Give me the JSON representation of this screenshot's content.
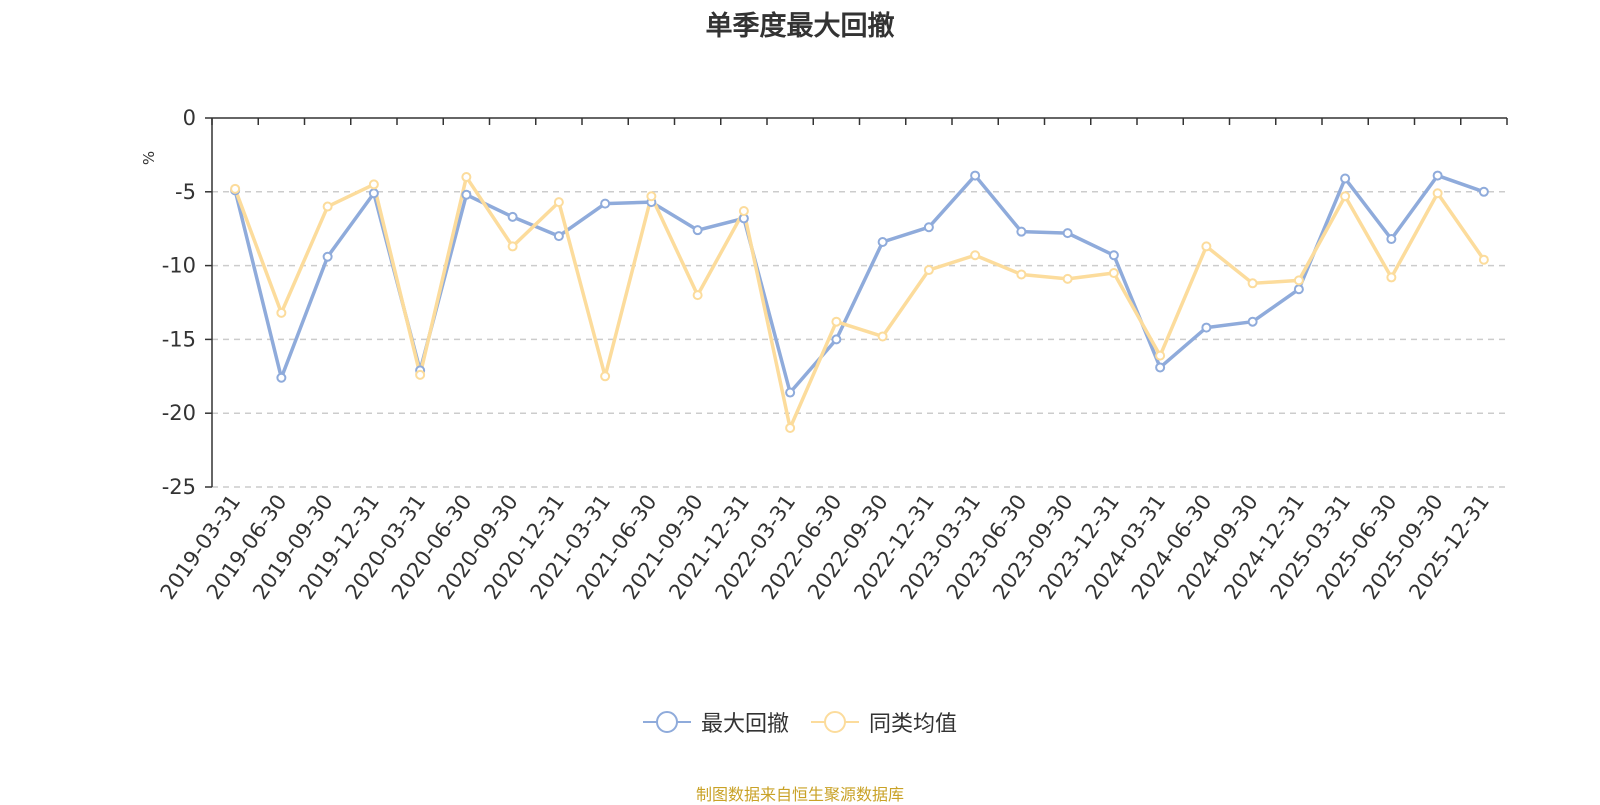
{
  "title": "单季度最大回撤",
  "source_note": "制图数据来自恒生聚源数据库",
  "colors": {
    "series1": "#8fabdb",
    "series2": "#fcdc9c",
    "grid": "#cccccc",
    "axis": "#333333",
    "unit": "#e02020"
  },
  "chart_data": {
    "type": "line",
    "title": "单季度最大回撤",
    "ylabel": "%",
    "ylim": [
      -25,
      0
    ],
    "yticks": [
      "0",
      "-5",
      "-10",
      "-15",
      "-20",
      "-25"
    ],
    "grid": true,
    "legend_position": "bottom-center",
    "categories": [
      "2019-03-31",
      "2019-06-30",
      "2019-09-30",
      "2019-12-31",
      "2020-03-31",
      "2020-06-30",
      "2020-09-30",
      "2020-12-31",
      "2021-03-31",
      "2021-06-30",
      "2021-09-30",
      "2021-12-31",
      "2022-03-31",
      "2022-06-30",
      "2022-09-30",
      "2022-12-31",
      "2023-03-31",
      "2023-06-30",
      "2023-09-30",
      "2023-12-31",
      "2024-03-31",
      "2024-06-30",
      "2024-09-30",
      "2024-12-31",
      "2025-03-31",
      "2025-06-30",
      "2025-09-30",
      "2025-12-31"
    ],
    "series": [
      {
        "name": "最大回撤",
        "color": "#8fabdb",
        "values": [
          -4.9,
          -17.6,
          -9.4,
          -5.1,
          -17.1,
          -5.2,
          -6.7,
          -8.0,
          -5.8,
          -5.7,
          -7.6,
          -6.8,
          -18.6,
          -15.0,
          -8.4,
          -7.4,
          -3.9,
          -7.7,
          -7.8,
          -9.3,
          -16.9,
          -14.2,
          -13.8,
          -11.6,
          -4.1,
          -8.2,
          -3.9,
          -5.0
        ]
      },
      {
        "name": "同类均值",
        "color": "#fcdc9c",
        "values": [
          -4.8,
          -13.2,
          -6.0,
          -4.5,
          -17.4,
          -4.0,
          -8.7,
          -5.7,
          -17.5,
          -5.3,
          -12.0,
          -6.3,
          -21.0,
          -13.8,
          -14.8,
          -10.3,
          -9.3,
          -10.6,
          -10.9,
          -10.5,
          -16.1,
          -8.7,
          -11.2,
          -11.0,
          -5.3,
          -10.8,
          -5.1,
          -9.6
        ]
      }
    ]
  }
}
